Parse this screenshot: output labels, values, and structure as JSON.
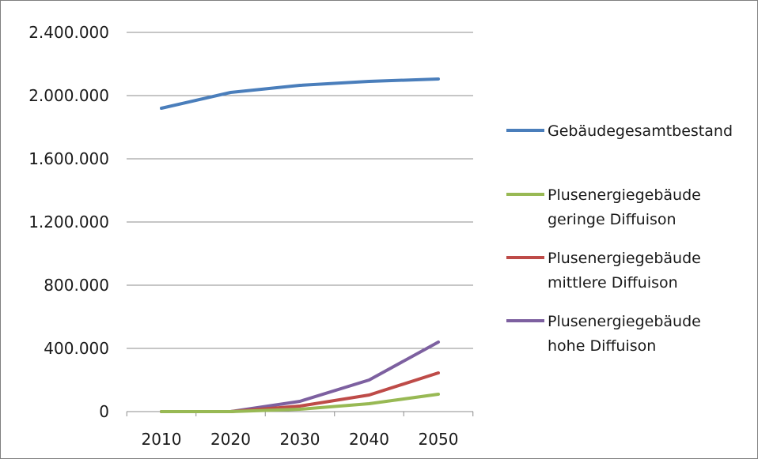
{
  "chart_data": {
    "type": "line",
    "title": "",
    "xlabel": "",
    "ylabel": "",
    "x": [
      2010,
      2020,
      2030,
      2040,
      2050
    ],
    "x_tick_labels": [
      "2010",
      "2020",
      "2030",
      "2040",
      "2050"
    ],
    "ylim": [
      0,
      2400000
    ],
    "y_ticks": [
      0,
      400000,
      800000,
      1200000,
      1600000,
      2000000,
      2400000
    ],
    "y_tick_labels": [
      "0",
      "400.000",
      "800.000",
      "1.200.000",
      "1.600.000",
      "2.000.000",
      "2.400.000"
    ],
    "grid": "horizontal",
    "legend_position": "right",
    "series": [
      {
        "name": "Gebäudegesamtbestand",
        "name_lines": [
          "Gebäudegesamtbestand"
        ],
        "color": "#4a7ebb",
        "values": [
          1920000,
          2020000,
          2065000,
          2090000,
          2105000
        ]
      },
      {
        "name": "Plusenergiegebäude geringe Diffuison",
        "name_lines": [
          "Plusenergiegebäude",
          "geringe Diffuison"
        ],
        "color": "#98b954",
        "values": [
          0,
          0,
          15000,
          50000,
          110000
        ]
      },
      {
        "name": "Plusenergiegebäude mittlere Diffuison",
        "name_lines": [
          "Plusenergiegebäude",
          "mittlere Diffuison"
        ],
        "color": "#be4b48",
        "values": [
          0,
          0,
          35000,
          105000,
          245000
        ]
      },
      {
        "name": "Plusenergiegebäude hohe Diffuison",
        "name_lines": [
          "Plusenergiegebäude",
          "hohe Diffuison"
        ],
        "color": "#7d60a0",
        "values": [
          0,
          0,
          65000,
          200000,
          440000
        ]
      }
    ]
  }
}
